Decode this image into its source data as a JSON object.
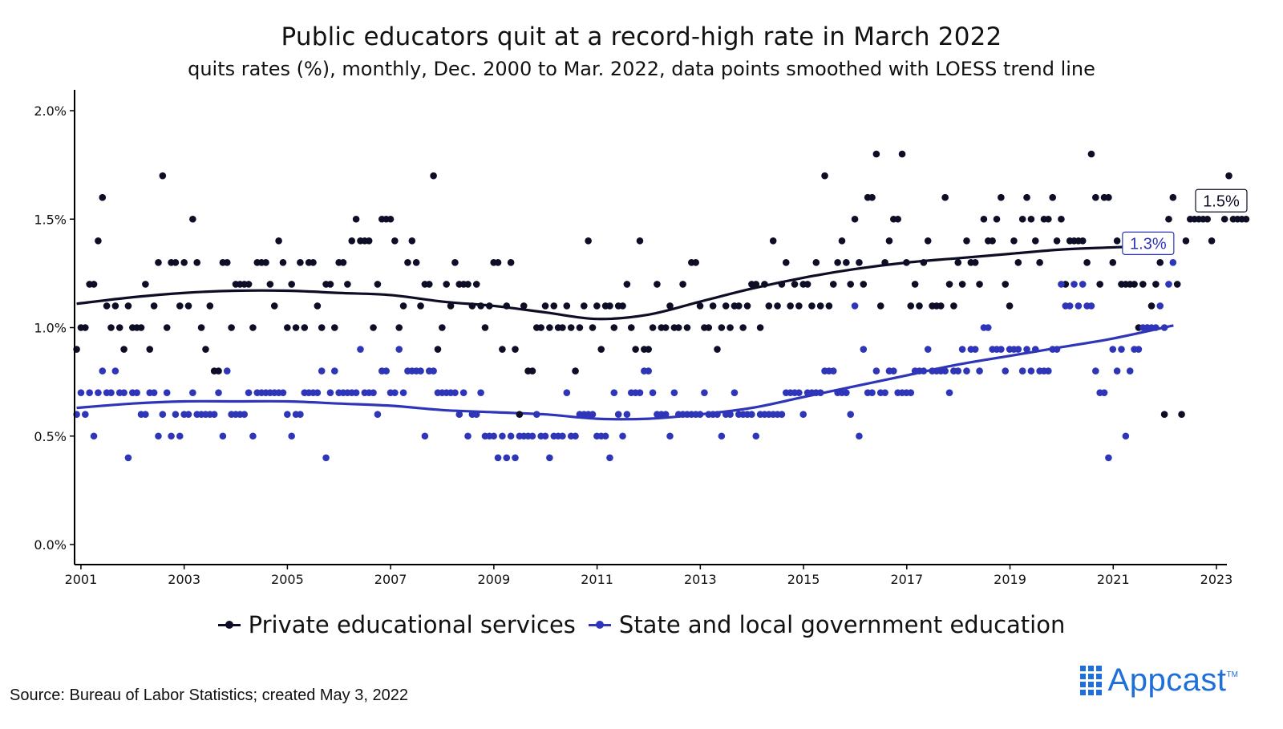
{
  "header": {
    "title": "Public educators quit at a record-high rate in March 2022",
    "subtitle": "quits rates (%), monthly, Dec. 2000 to Mar. 2022, data points smoothed with LOESS trend line"
  },
  "footer": {
    "source": "Source: Bureau of Labor Statistics; created May 3, 2022",
    "brand": "Appcast",
    "brand_tm": "TM"
  },
  "colors": {
    "private": "#0d0d26",
    "public": "#2f35b8",
    "brand": "#1e6fd9"
  },
  "chart_data": {
    "type": "scatter",
    "title": "Public educators quit at a record-high rate in March 2022",
    "subtitle": "quits rates (%), monthly, Dec. 2000 to Mar. 2022, data points smoothed with LOESS trend line",
    "xlim": [
      2000.9,
      2023
    ],
    "ylim": [
      0,
      2.0
    ],
    "x_ticks": [
      2001,
      2003,
      2005,
      2007,
      2009,
      2011,
      2013,
      2015,
      2017,
      2019,
      2021,
      2023
    ],
    "x_tick_labels": [
      "2001",
      "2003",
      "2005",
      "2007",
      "2009",
      "2011",
      "2013",
      "2015",
      "2017",
      "2019",
      "2021",
      "2023"
    ],
    "y_ticks": [
      0,
      0.5,
      1.0,
      1.5,
      2.0
    ],
    "y_tick_labels": [
      "0.0%",
      "0.5%",
      "1.0%",
      "1.5%",
      "2.0%"
    ],
    "grid": false,
    "legend_position": "bottom",
    "series": [
      {
        "name": "Private educational services",
        "color": "#0d0d26",
        "x_start": 2000.917,
        "x_step": 0.0833,
        "values": [
          0.9,
          1.0,
          1.0,
          1.2,
          1.2,
          1.4,
          1.6,
          1.1,
          1.0,
          1.1,
          1.0,
          0.9,
          1.1,
          1.0,
          1.0,
          1.0,
          1.2,
          0.9,
          1.1,
          1.3,
          1.7,
          1.0,
          1.3,
          1.3,
          1.1,
          1.3,
          1.1,
          1.5,
          1.3,
          1.0,
          0.9,
          1.1,
          0.8,
          0.8,
          1.3,
          1.3,
          1.0,
          1.2,
          1.2,
          1.2,
          1.2,
          1.0,
          1.3,
          1.3,
          1.3,
          1.2,
          1.1,
          1.4,
          1.3,
          1.0,
          1.2,
          1.0,
          1.3,
          1.0,
          1.3,
          1.3,
          1.1,
          1.0,
          1.2,
          1.2,
          1.0,
          1.3,
          1.3,
          1.2,
          1.4,
          1.5,
          1.4,
          1.4,
          1.4,
          1.0,
          1.2,
          1.5,
          1.5,
          1.5,
          1.4,
          1.0,
          1.1,
          1.3,
          1.4,
          1.3,
          1.1,
          1.2,
          1.2,
          1.7,
          0.9,
          1.0,
          1.2,
          1.1,
          1.3,
          1.2,
          1.2,
          1.2,
          1.1,
          1.2,
          1.1,
          1.0,
          1.1,
          1.3,
          1.3,
          0.9,
          1.1,
          1.3,
          0.9,
          0.6,
          1.1,
          0.8,
          0.8,
          1.0,
          1.0,
          1.1,
          1.0,
          1.1,
          1.0,
          1.0,
          1.1,
          1.0,
          0.8,
          1.0,
          1.1,
          1.4,
          1.0,
          1.1,
          0.9,
          1.1,
          1.1,
          1.0,
          1.1,
          1.1,
          1.2,
          1.0,
          0.9,
          1.4,
          0.9,
          0.9,
          1.0,
          1.2,
          1.0,
          1.0,
          1.1,
          1.0,
          1.0,
          1.2,
          1.0,
          1.3,
          1.3,
          1.1,
          1.0,
          1.0,
          1.1,
          0.9,
          1.0,
          1.1,
          1.0,
          1.1,
          1.1,
          1.0,
          1.1,
          1.2,
          1.2,
          1.0,
          1.2,
          1.1,
          1.4,
          1.1,
          1.2,
          1.3,
          1.1,
          1.2,
          1.1,
          1.2,
          1.2,
          1.1,
          1.3,
          1.1,
          1.7,
          1.1,
          1.2,
          1.3,
          1.4,
          1.3,
          1.2,
          1.5,
          1.3,
          1.2,
          1.6,
          1.6,
          1.8,
          1.1,
          1.3,
          1.4,
          1.5,
          1.5,
          1.8,
          1.3,
          1.1,
          1.2,
          1.1,
          1.3,
          1.4,
          1.1,
          1.1,
          1.1,
          1.6,
          1.2,
          1.1,
          1.3,
          1.2,
          1.4,
          1.3,
          1.3,
          1.2,
          1.5,
          1.4,
          1.4,
          1.5,
          1.6,
          1.2,
          1.1,
          1.4,
          1.3,
          1.5,
          1.6,
          1.5,
          1.4,
          1.3,
          1.5,
          1.5,
          1.6,
          1.4,
          1.5,
          1.2,
          1.4,
          1.4,
          1.4,
          1.4,
          1.3,
          1.8,
          1.6,
          1.2,
          1.6,
          1.6,
          1.3,
          1.4,
          1.2,
          1.2,
          1.2,
          1.2,
          1.0,
          1.2,
          1.0,
          1.1,
          1.2,
          1.3,
          0.6,
          1.5,
          1.6,
          1.2,
          0.6,
          1.4,
          1.5,
          1.5,
          1.5,
          1.5,
          1.5,
          1.4,
          1.6,
          1.6,
          1.5,
          1.7,
          1.5,
          1.5,
          1.5,
          1.5
        ]
      },
      {
        "name": "State and local government education",
        "color": "#2f35b8",
        "x_start": 2000.917,
        "x_step": 0.0833,
        "values": [
          0.6,
          0.7,
          0.6,
          0.7,
          0.5,
          0.7,
          0.8,
          0.7,
          0.7,
          0.8,
          0.7,
          0.7,
          0.4,
          0.7,
          0.7,
          0.6,
          0.6,
          0.7,
          0.7,
          0.5,
          0.6,
          0.7,
          0.5,
          0.6,
          0.5,
          0.6,
          0.6,
          0.7,
          0.6,
          0.6,
          0.6,
          0.6,
          0.6,
          0.7,
          0.5,
          0.8,
          0.6,
          0.6,
          0.6,
          0.6,
          0.7,
          0.5,
          0.7,
          0.7,
          0.7,
          0.7,
          0.7,
          0.7,
          0.7,
          0.6,
          0.5,
          0.6,
          0.6,
          0.7,
          0.7,
          0.7,
          0.7,
          0.8,
          0.4,
          0.7,
          0.8,
          0.7,
          0.7,
          0.7,
          0.7,
          0.7,
          0.9,
          0.7,
          0.7,
          0.7,
          0.6,
          0.8,
          0.8,
          0.7,
          0.7,
          0.9,
          0.7,
          0.8,
          0.8,
          0.8,
          0.8,
          0.5,
          0.8,
          0.8,
          0.7,
          0.7,
          0.7,
          0.7,
          0.7,
          0.6,
          0.7,
          0.5,
          0.6,
          0.6,
          0.7,
          0.5,
          0.5,
          0.5,
          0.4,
          0.5,
          0.4,
          0.5,
          0.4,
          0.5,
          0.5,
          0.5,
          0.5,
          0.6,
          0.5,
          0.5,
          0.4,
          0.5,
          0.5,
          0.5,
          0.7,
          0.5,
          0.5,
          0.6,
          0.6,
          0.6,
          0.6,
          0.5,
          0.5,
          0.5,
          0.4,
          0.7,
          0.6,
          0.5,
          0.6,
          0.7,
          0.7,
          0.7,
          0.8,
          0.8,
          0.7,
          0.6,
          0.6,
          0.6,
          0.5,
          0.7,
          0.6,
          0.6,
          0.6,
          0.6,
          0.6,
          0.6,
          0.7,
          0.6,
          0.6,
          0.6,
          0.5,
          0.6,
          0.6,
          0.7,
          0.6,
          0.6,
          0.6,
          0.6,
          0.5,
          0.6,
          0.6,
          0.6,
          0.6,
          0.6,
          0.6,
          0.7,
          0.7,
          0.7,
          0.7,
          0.6,
          0.7,
          0.7,
          0.7,
          0.7,
          0.8,
          0.8,
          0.8,
          0.7,
          0.7,
          0.7,
          0.6,
          1.1,
          0.5,
          0.9,
          0.7,
          0.7,
          0.8,
          0.7,
          0.7,
          0.8,
          0.8,
          0.7,
          0.7,
          0.7,
          0.7,
          0.8,
          0.8,
          0.8,
          0.9,
          0.8,
          0.8,
          0.8,
          0.8,
          0.7,
          0.8,
          0.8,
          0.9,
          0.8,
          0.9,
          0.9,
          0.8,
          1.0,
          1.0,
          0.9,
          0.9,
          0.9,
          0.8,
          0.9,
          0.9,
          0.9,
          0.8,
          0.9,
          0.8,
          0.9,
          0.8,
          0.8,
          0.8,
          0.9,
          0.9,
          1.2,
          1.1,
          1.1,
          1.2,
          1.1,
          1.2,
          1.1,
          1.1,
          0.8,
          0.7,
          0.7,
          0.4,
          0.9,
          0.8,
          0.9,
          0.5,
          0.8,
          0.9,
          0.9,
          1.0,
          1.0,
          1.0,
          1.0,
          1.1,
          1.0,
          1.2,
          1.3
        ]
      }
    ],
    "trend_lines": [
      {
        "name": "Private educational services",
        "x": [
          2000.917,
          2002,
          2003,
          2004,
          2005,
          2006,
          2007,
          2008,
          2009,
          2010,
          2011,
          2012,
          2013,
          2014,
          2015,
          2016,
          2017,
          2018,
          2019,
          2020,
          2021,
          2022.167
        ],
        "y": [
          1.11,
          1.14,
          1.16,
          1.17,
          1.17,
          1.16,
          1.15,
          1.12,
          1.1,
          1.07,
          1.04,
          1.06,
          1.12,
          1.18,
          1.23,
          1.27,
          1.3,
          1.32,
          1.34,
          1.36,
          1.37,
          1.38
        ]
      },
      {
        "name": "State and local government education",
        "x": [
          2000.917,
          2002,
          2003,
          2004,
          2005,
          2006,
          2007,
          2008,
          2009,
          2010,
          2011,
          2012,
          2013,
          2014,
          2015,
          2016,
          2017,
          2018,
          2019,
          2020,
          2021,
          2022.167
        ],
        "y": [
          0.63,
          0.65,
          0.66,
          0.66,
          0.66,
          0.65,
          0.64,
          0.62,
          0.61,
          0.6,
          0.58,
          0.58,
          0.6,
          0.63,
          0.68,
          0.73,
          0.78,
          0.83,
          0.87,
          0.91,
          0.95,
          1.01
        ]
      }
    ],
    "annotations": [
      {
        "series": "Private educational services",
        "text": "1.5%"
      },
      {
        "series": "State and local government education",
        "text": "1.3%"
      }
    ]
  }
}
